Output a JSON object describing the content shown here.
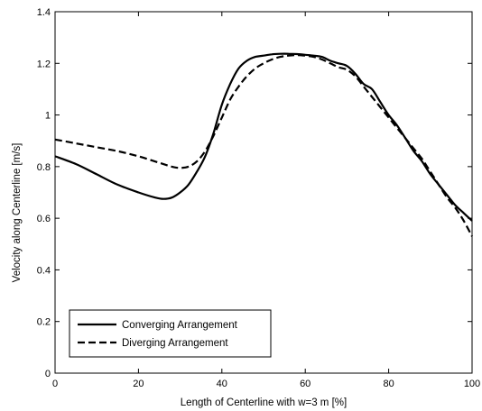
{
  "chart_data": {
    "type": "line",
    "title": "",
    "xlabel": "Length of Centerline with w=3 m [%]",
    "ylabel": "Velocity along Centerline [m/s]",
    "xlim": [
      0,
      100
    ],
    "ylim": [
      0,
      1.4
    ],
    "xticks": [
      0,
      20,
      40,
      60,
      80,
      100
    ],
    "yticks": [
      0,
      0.2,
      0.4,
      0.6,
      0.8,
      1,
      1.2,
      1.4
    ],
    "xtick_labels": [
      "0",
      "20",
      "40",
      "60",
      "80",
      "100"
    ],
    "ytick_labels": [
      "0",
      "0.2",
      "0.4",
      "0.6",
      "0.8",
      "1",
      "1.2",
      "1.4"
    ],
    "grid": false,
    "legend_position": "bottom-left",
    "series": [
      {
        "name": "Converging Arrangement",
        "style": "solid",
        "x": [
          0,
          5,
          10,
          15,
          20,
          24,
          26,
          28,
          30,
          32,
          34,
          36,
          38,
          40,
          42,
          44,
          46,
          48,
          50,
          52,
          54,
          56,
          58,
          60,
          62,
          64,
          66,
          68,
          70,
          72,
          74,
          76,
          78,
          80,
          82,
          84,
          86,
          88,
          90,
          92,
          94,
          96,
          98,
          100
        ],
        "y": [
          0.84,
          0.81,
          0.77,
          0.73,
          0.7,
          0.68,
          0.675,
          0.68,
          0.7,
          0.73,
          0.78,
          0.84,
          0.93,
          1.04,
          1.12,
          1.18,
          1.21,
          1.225,
          1.23,
          1.235,
          1.237,
          1.237,
          1.236,
          1.233,
          1.23,
          1.225,
          1.21,
          1.2,
          1.19,
          1.16,
          1.12,
          1.1,
          1.05,
          1.0,
          0.96,
          0.91,
          0.86,
          0.82,
          0.77,
          0.73,
          0.69,
          0.65,
          0.62,
          0.59
        ]
      },
      {
        "name": "Diverging Arrangement",
        "style": "dashed",
        "x": [
          0,
          5,
          10,
          15,
          20,
          25,
          28,
          30,
          32,
          34,
          36,
          38,
          40,
          42,
          44,
          46,
          48,
          50,
          52,
          54,
          56,
          58,
          60,
          62,
          64,
          66,
          68,
          70,
          72,
          74,
          76,
          78,
          80,
          82,
          84,
          86,
          88,
          90,
          92,
          94,
          96,
          98,
          100
        ],
        "y": [
          0.905,
          0.89,
          0.875,
          0.86,
          0.84,
          0.815,
          0.8,
          0.795,
          0.8,
          0.82,
          0.86,
          0.92,
          0.99,
          1.06,
          1.11,
          1.15,
          1.18,
          1.2,
          1.215,
          1.225,
          1.23,
          1.232,
          1.23,
          1.225,
          1.215,
          1.2,
          1.185,
          1.175,
          1.15,
          1.11,
          1.07,
          1.03,
          0.99,
          0.95,
          0.91,
          0.87,
          0.83,
          0.78,
          0.73,
          0.68,
          0.64,
          0.59,
          0.53
        ]
      }
    ]
  }
}
